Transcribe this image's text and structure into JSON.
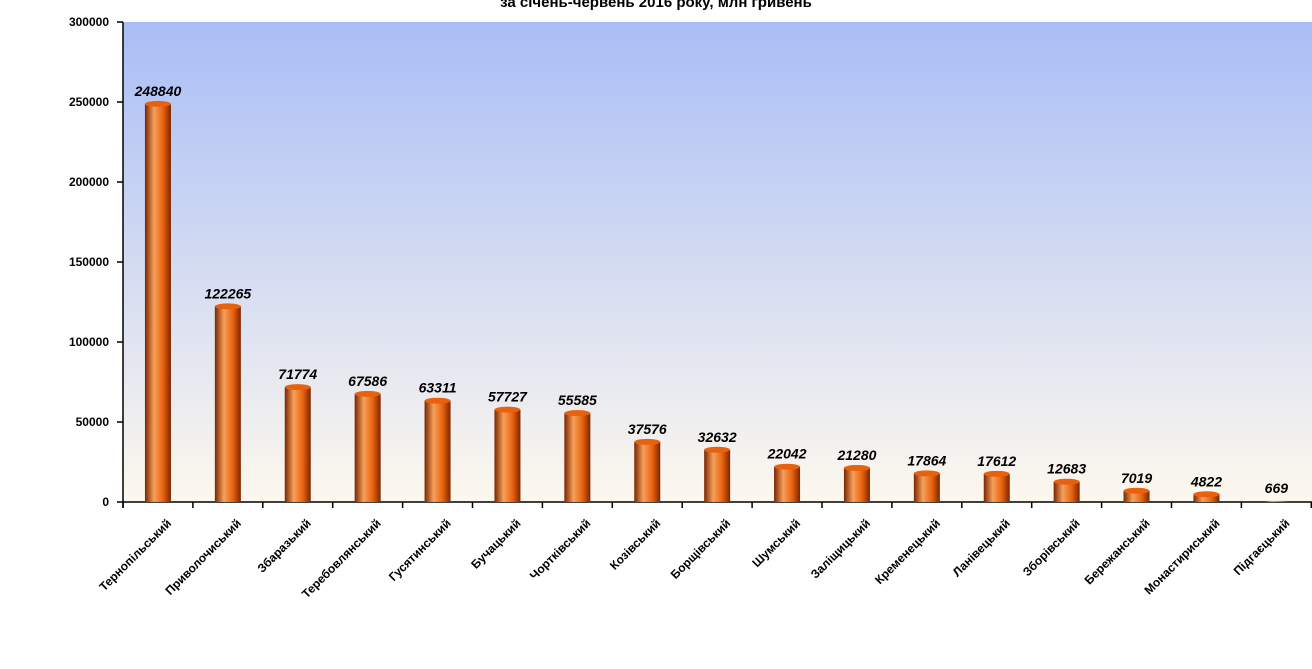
{
  "chart_data": {
    "type": "bar",
    "title": "за січень-червень 2016 року, млн гривень",
    "xlabel": "",
    "ylabel": "",
    "ylim": [
      0,
      300000
    ],
    "yticks": [
      0,
      50000,
      100000,
      150000,
      200000,
      250000,
      300000
    ],
    "grid": false,
    "legend": "none",
    "categories": [
      "Тернопільський",
      "Приволочиський",
      "Збаразький",
      "Теребовлянський",
      "Гусятинський",
      "Бучацький",
      "Чортківський",
      "Козівський",
      "Борщівський",
      "Шумський",
      "Заліщицький",
      "Кременецький",
      "Ланівецький",
      "Зборівський",
      "Бережанський",
      "Монастириський",
      "Підгаєцький"
    ],
    "values": [
      248840,
      122265,
      71774,
      67586,
      63311,
      57727,
      55585,
      37576,
      32632,
      22042,
      21280,
      17864,
      17612,
      12683,
      7019,
      4822,
      669
    ],
    "colors": {
      "bar_light": "#f6a05a",
      "bar_mid": "#e8620e",
      "bar_dark": "#7a2500",
      "plot_top": "#a9bef6",
      "plot_bottom": "#fdf8ee"
    }
  }
}
